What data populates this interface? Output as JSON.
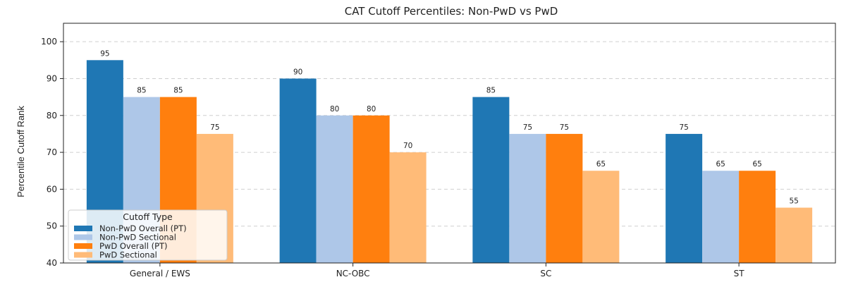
{
  "chart_data": {
    "type": "bar",
    "title": "CAT Cutoff Percentiles: Non-PwD vs PwD",
    "xlabel": "",
    "ylabel": "Percentile Cutoff Rank",
    "ylim": [
      40,
      105
    ],
    "yticks": [
      40,
      50,
      60,
      70,
      80,
      90,
      100
    ],
    "grid": true,
    "legend_title": "Cutoff Type",
    "legend_position": "lower-left",
    "categories": [
      "General / EWS",
      "NC-OBC",
      "SC",
      "ST"
    ],
    "series": [
      {
        "name": "Non-PwD Overall (PT)",
        "color": "#1f77b4",
        "values": [
          95,
          90,
          85,
          75
        ]
      },
      {
        "name": "Non-PwD Sectional",
        "color": "#aec7e8",
        "values": [
          85,
          80,
          75,
          65
        ]
      },
      {
        "name": "PwD Overall (PT)",
        "color": "#ff7f0e",
        "values": [
          85,
          80,
          75,
          65
        ]
      },
      {
        "name": "PwD Sectional",
        "color": "#ffbb78",
        "values": [
          75,
          70,
          65,
          55
        ]
      }
    ]
  }
}
